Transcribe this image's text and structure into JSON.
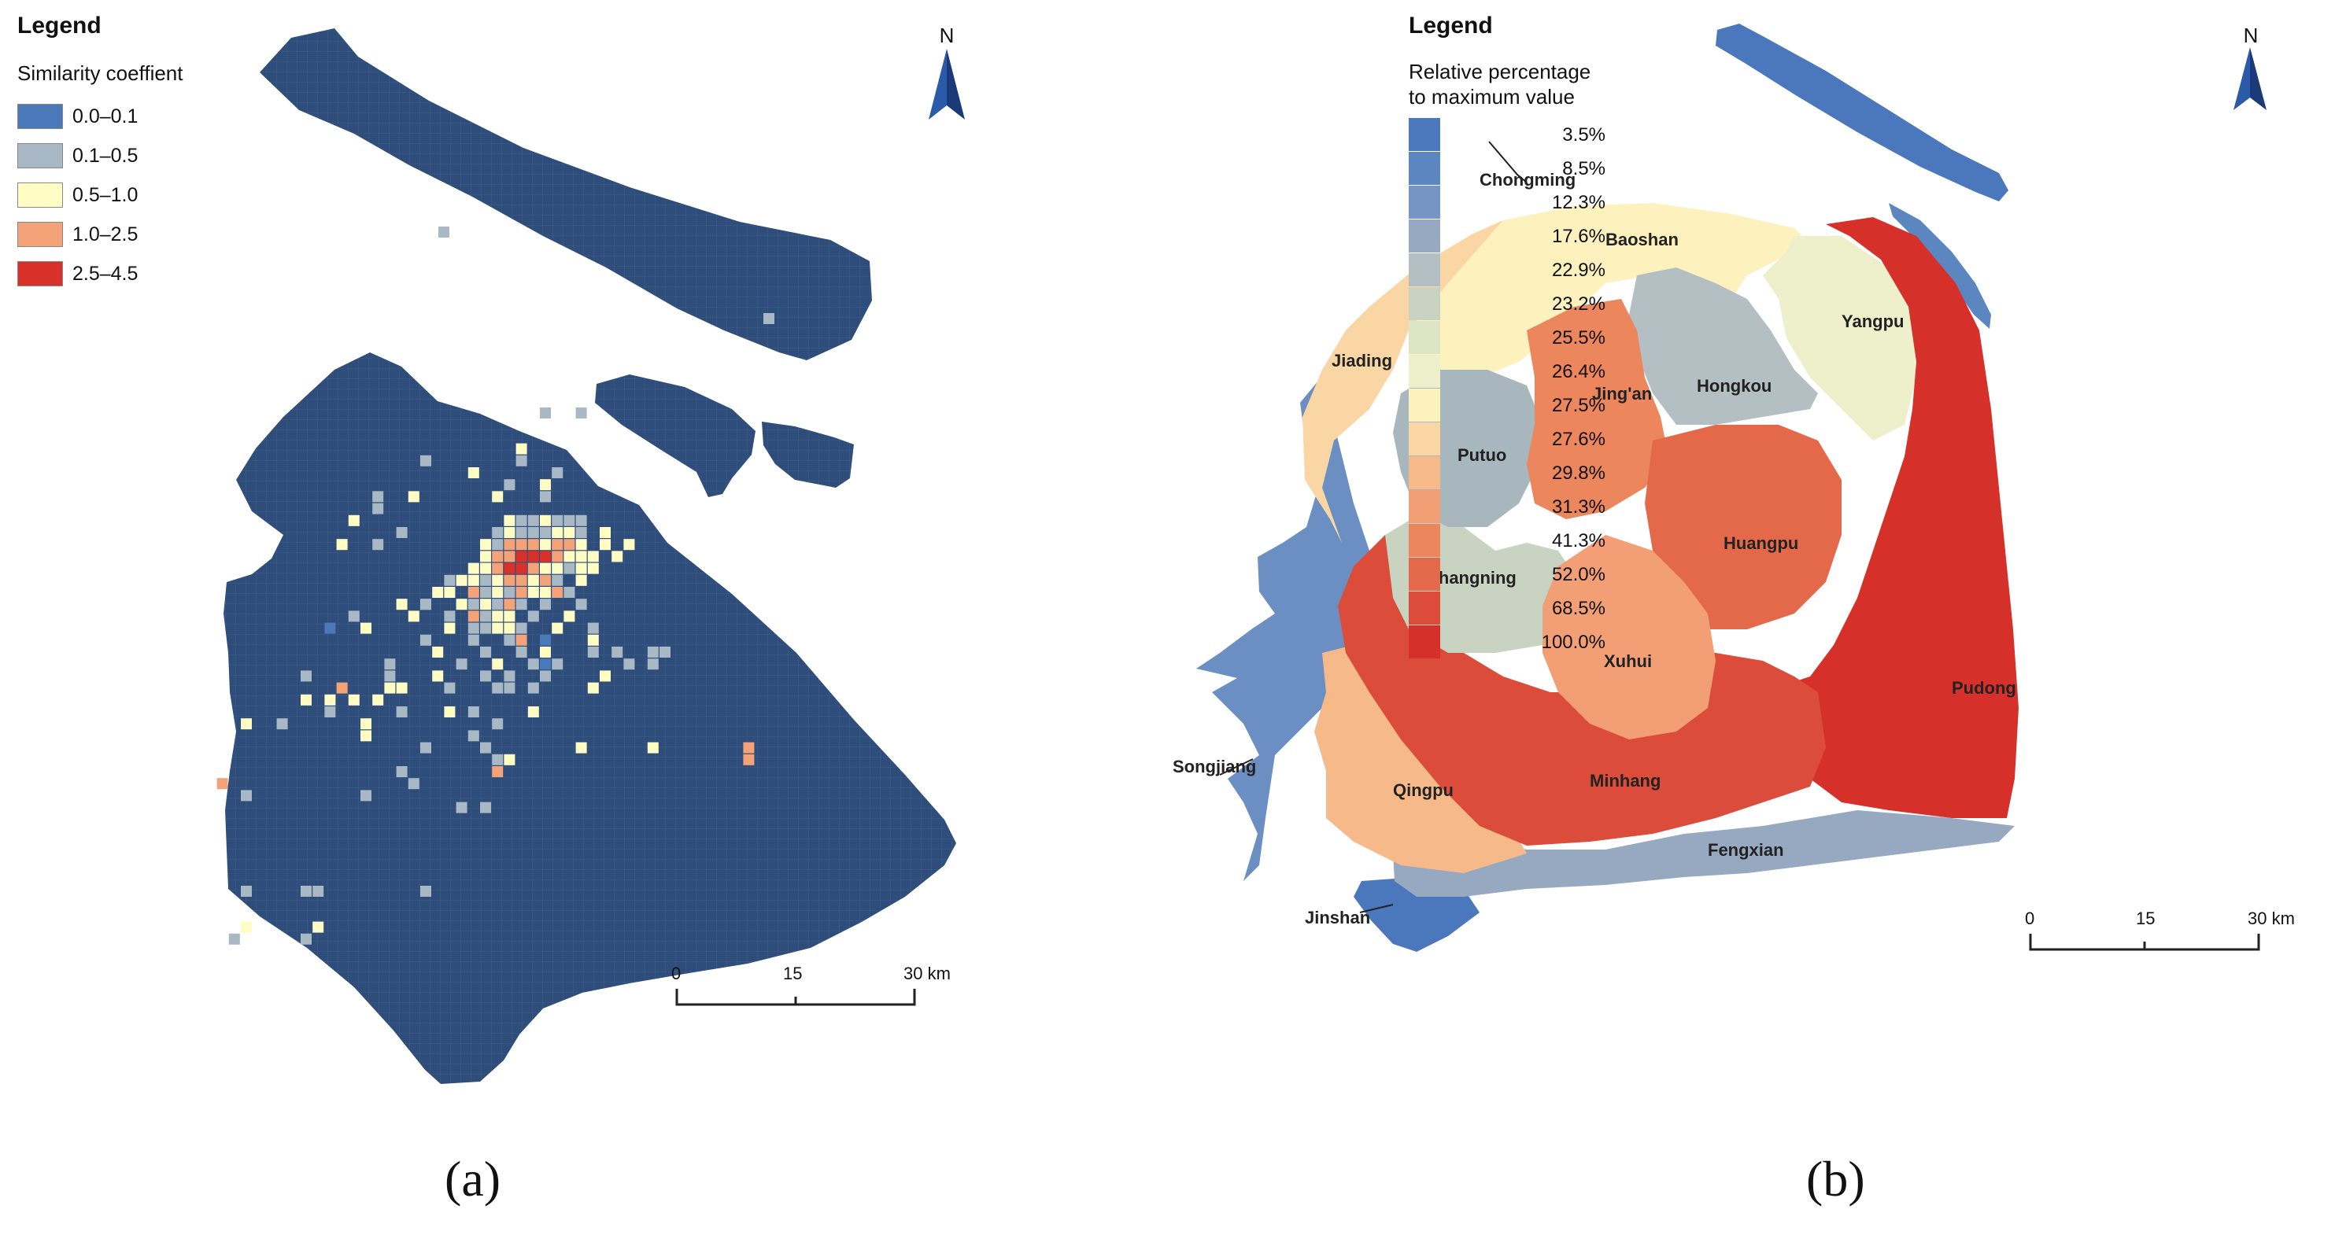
{
  "panel_a": {
    "legend_title": "Legend",
    "legend_subtitle": "Similarity coeffient",
    "legend_items": [
      {
        "label": "0.0–0.1",
        "color": "#4a78b8"
      },
      {
        "label": "0.1–0.5",
        "color": "#a8b8c4"
      },
      {
        "label": "0.5–1.0",
        "color": "#fffcc4"
      },
      {
        "label": "1.0–2.5",
        "color": "#f4a277"
      },
      {
        "label": "2.5–4.5",
        "color": "#d7312a"
      }
    ],
    "background_cell_color": "#2e4d7a",
    "north_label": "N",
    "scale": {
      "ticks": [
        "0",
        "15",
        "30 km"
      ]
    },
    "caption": "(a)"
  },
  "panel_b": {
    "legend_title": "Legend",
    "legend_subtitle_line1": "Relative percentage",
    "legend_subtitle_line2": "to maximum value",
    "legend_items": [
      {
        "label": "3.5%",
        "color": "#4b77bd"
      },
      {
        "label": "8.5%",
        "color": "#5c86c0"
      },
      {
        "label": "12.3%",
        "color": "#7795c4"
      },
      {
        "label": "17.6%",
        "color": "#97a9c1"
      },
      {
        "label": "22.9%",
        "color": "#b3bfc3"
      },
      {
        "label": "23.2%",
        "color": "#c8d3c2"
      },
      {
        "label": "25.5%",
        "color": "#dde5c6"
      },
      {
        "label": "26.4%",
        "color": "#eef0cc"
      },
      {
        "label": "27.5%",
        "color": "#fdf2bd"
      },
      {
        "label": "27.6%",
        "color": "#f9d6a4"
      },
      {
        "label": "29.8%",
        "color": "#f6b98a"
      },
      {
        "label": "31.3%",
        "color": "#f29f76"
      },
      {
        "label": "41.3%",
        "color": "#ec865c"
      },
      {
        "label": "52.0%",
        "color": "#e4694a"
      },
      {
        "label": "68.5%",
        "color": "#dc4c3a"
      },
      {
        "label": "100.0%",
        "color": "#d6302b"
      }
    ],
    "districts": [
      {
        "name": "Chongming"
      },
      {
        "name": "Baoshan"
      },
      {
        "name": "Yangpu"
      },
      {
        "name": "Jiading"
      },
      {
        "name": "Hongkou"
      },
      {
        "name": "Jing'an"
      },
      {
        "name": "Putuo"
      },
      {
        "name": "Huangpu"
      },
      {
        "name": "Changning"
      },
      {
        "name": "Xuhui"
      },
      {
        "name": "Pudong"
      },
      {
        "name": "Songjiang"
      },
      {
        "name": "Qingpu"
      },
      {
        "name": "Minhang"
      },
      {
        "name": "Fengxian"
      },
      {
        "name": "Jinshan"
      }
    ],
    "north_label": "N",
    "scale": {
      "ticks": [
        "0",
        "15",
        "30 km"
      ]
    },
    "caption": "(b)"
  }
}
